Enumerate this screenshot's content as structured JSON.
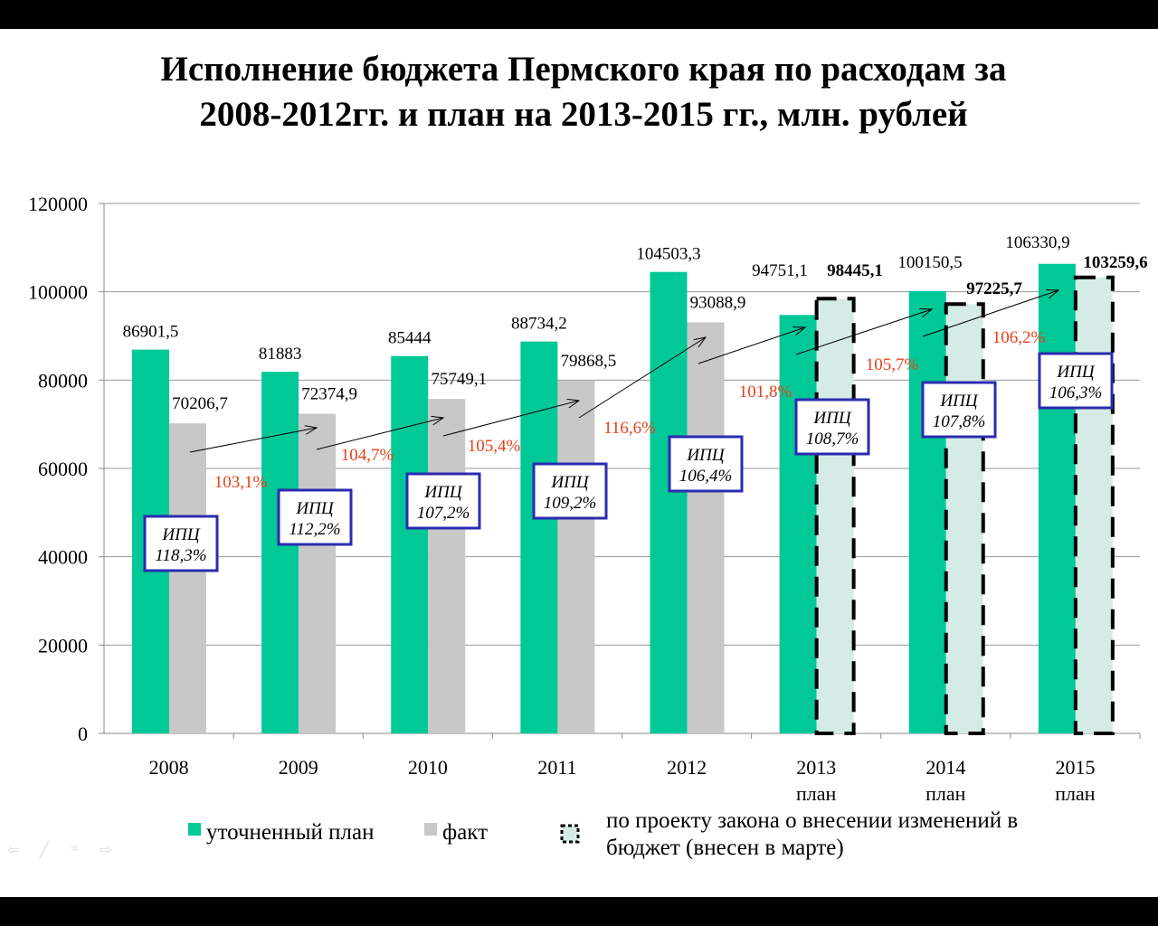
{
  "chart_data": {
    "type": "bar",
    "title": "Исполнение бюджета Пермского края по расходам за 2008-2012гг. и план на 2013-2015 гг., млн. рублей",
    "title_lines": [
      "Исполнение бюджета Пермского края по расходам за",
      "2008-2012гг. и план на 2013-2015 гг., млн. рублей"
    ],
    "categories": [
      "2008",
      "2009",
      "2010",
      "2011",
      "2012",
      "2013",
      "2014",
      "2015"
    ],
    "category_sublabels": [
      "",
      "",
      "",
      "",
      "",
      "план",
      "план",
      "план"
    ],
    "ylim": [
      0,
      120000
    ],
    "yticks": [
      "0",
      "20000",
      "40000",
      "60000",
      "80000",
      "100000",
      "120000"
    ],
    "grid": true,
    "series": [
      {
        "name": "уточненный план",
        "color": "#00c896",
        "values": [
          86901.5,
          81883,
          85444,
          88734.2,
          104503.3,
          94751.1,
          100150.5,
          106330.9
        ],
        "labels": [
          "86901,5",
          "81883",
          "85444",
          "88734,2",
          "104503,3",
          "94751,1",
          "100150,5",
          "106330,9"
        ]
      },
      {
        "name": "факт",
        "color": "#c8c8c8",
        "values": [
          70206.7,
          72374.9,
          75749.1,
          79868.5,
          93088.9,
          null,
          null,
          null
        ],
        "labels": [
          "70206,7",
          "72374,9",
          "75749,1",
          "79868,5",
          "93088,9",
          "",
          "",
          ""
        ]
      },
      {
        "name": "по проекту закона о внесении  изменений в бюджет (внесен в марте)",
        "color": "#d5ece6",
        "values": [
          null,
          null,
          null,
          null,
          null,
          98445.1,
          97225.7,
          103259.6
        ],
        "labels": [
          "",
          "",
          "",
          "",
          "",
          "98445,1",
          "97225,7",
          "103259,6"
        ]
      }
    ],
    "growth_labels": [
      "103,1%",
      "104,7%",
      "105,4%",
      "116,6%",
      "101,8%",
      "105,7%",
      "106,2%"
    ],
    "growth_color": "#e8401c",
    "cpi_title": "ИПЦ",
    "cpi_labels": [
      "118,3%",
      "112,2%",
      "107,2%",
      "109,2%",
      "106,4%",
      "108,7%",
      "107,8%",
      "106,3%"
    ],
    "cpi_border_color": "#2b2bb0",
    "legend_position": "bottom",
    "legend": [
      "уточненный план",
      "факт",
      "по проекту закона о внесении  изменений в",
      "бюджет (внесен в марте)"
    ]
  }
}
